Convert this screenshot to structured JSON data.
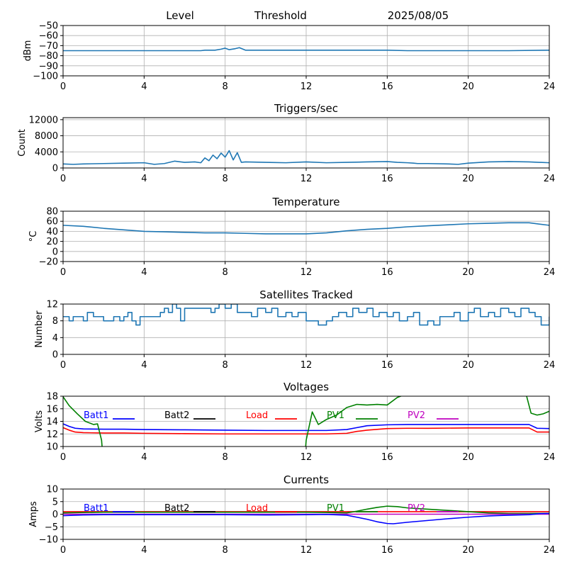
{
  "header": {
    "left": "Level",
    "middle": "Threshold",
    "date": "2025/08/05"
  },
  "chart_data": [
    {
      "id": "level",
      "type": "line",
      "title": "",
      "ylabel": "dBm",
      "xlim": [
        0,
        24
      ],
      "ylim": [
        -100,
        -50
      ],
      "xticks": [
        "0",
        "4",
        "8",
        "12",
        "16",
        "20",
        "24"
      ],
      "yticks": [
        "−100",
        "−90",
        "−80",
        "−70",
        "−60",
        "−50"
      ],
      "ytick_values": [
        -100,
        -90,
        -80,
        -70,
        -60,
        -50
      ],
      "grid": true,
      "series": [
        {
          "color": "#1f77b4",
          "x": [
            0,
            2,
            4,
            5,
            6,
            6.8,
            7,
            7.5,
            7.8,
            8,
            8.2,
            8.5,
            8.7,
            9,
            10,
            12,
            14,
            16,
            17,
            18,
            20,
            22,
            24
          ],
          "y": [
            -75,
            -75,
            -75,
            -75,
            -75,
            -75,
            -74.5,
            -74.5,
            -73.5,
            -72.5,
            -74,
            -73,
            -72,
            -74.5,
            -74.5,
            -74.5,
            -74.5,
            -74.5,
            -75,
            -75,
            -75,
            -75,
            -74.5
          ]
        }
      ]
    },
    {
      "id": "triggers",
      "type": "line",
      "title": "Triggers/sec",
      "ylabel": "Count",
      "xlim": [
        0,
        24
      ],
      "ylim": [
        0,
        12500
      ],
      "xticks": [
        "0",
        "4",
        "8",
        "12",
        "16",
        "20",
        "24"
      ],
      "yticks": [
        "0",
        "4000",
        "8000",
        "12000"
      ],
      "ytick_values": [
        0,
        4000,
        8000,
        12000
      ],
      "grid": true,
      "series": [
        {
          "color": "#1f77b4",
          "x": [
            0,
            0.5,
            1,
            2,
            3,
            4,
            4.5,
            5,
            5.5,
            6,
            6.5,
            6.8,
            7,
            7.2,
            7.4,
            7.6,
            7.8,
            8,
            8.2,
            8.4,
            8.6,
            8.8,
            9,
            10,
            11,
            12,
            13,
            14,
            15,
            16,
            16.5,
            17,
            17.3,
            17.5,
            18,
            19,
            19.5,
            20,
            21,
            22,
            23,
            24
          ],
          "y": [
            1000,
            900,
            1000,
            1100,
            1200,
            1300,
            900,
            1100,
            1700,
            1400,
            1500,
            1300,
            2500,
            1800,
            3200,
            2300,
            3700,
            2700,
            4300,
            2000,
            3800,
            1400,
            1500,
            1400,
            1300,
            1500,
            1300,
            1400,
            1500,
            1600,
            1400,
            1300,
            1200,
            1100,
            1100,
            1000,
            900,
            1200,
            1500,
            1600,
            1500,
            1300
          ]
        }
      ]
    },
    {
      "id": "temperature",
      "type": "line",
      "title": "Temperature",
      "ylabel": "°C",
      "xlim": [
        0,
        24
      ],
      "ylim": [
        -20,
        80
      ],
      "xticks": [
        "0",
        "4",
        "8",
        "12",
        "16",
        "20",
        "24"
      ],
      "yticks": [
        "−20",
        "0",
        "20",
        "40",
        "60",
        "80"
      ],
      "ytick_values": [
        -20,
        0,
        20,
        40,
        60,
        80
      ],
      "grid": true,
      "series": [
        {
          "color": "#1f77b4",
          "x": [
            0,
            1,
            2,
            3,
            4,
            5,
            6,
            7,
            8,
            9,
            10,
            11,
            12,
            13,
            14,
            15,
            16,
            17,
            18,
            19,
            20,
            21,
            22,
            23,
            24
          ],
          "y": [
            52,
            50,
            46,
            43,
            40,
            39,
            38,
            37,
            37,
            36,
            35,
            35,
            35,
            37,
            41,
            44,
            46,
            49,
            51,
            53,
            55,
            56,
            57,
            57,
            52
          ]
        }
      ]
    },
    {
      "id": "satellites",
      "type": "line",
      "title": "Satellites Tracked",
      "ylabel": "Number",
      "xlim": [
        0,
        24
      ],
      "ylim": [
        0,
        12
      ],
      "xticks": [
        "0",
        "4",
        "8",
        "12",
        "16",
        "20",
        "24"
      ],
      "yticks": [
        "0",
        "4",
        "8",
        "12"
      ],
      "ytick_values": [
        0,
        4,
        8,
        12
      ],
      "grid": true,
      "step": true,
      "series": [
        {
          "color": "#1f77b4",
          "x": [
            0,
            0.3,
            0.5,
            0.7,
            1,
            1.2,
            1.5,
            2,
            2.5,
            2.8,
            3,
            3.2,
            3.4,
            3.6,
            3.8,
            4,
            4.5,
            4.8,
            5,
            5.2,
            5.4,
            5.6,
            5.8,
            6,
            6.5,
            7,
            7.3,
            7.5,
            7.7,
            8,
            8.3,
            8.6,
            9,
            9.3,
            9.6,
            10,
            10.3,
            10.6,
            11,
            11.3,
            11.6,
            12,
            12.3,
            12.6,
            13,
            13.3,
            13.6,
            14,
            14.3,
            14.6,
            15,
            15.3,
            15.6,
            16,
            16.3,
            16.6,
            17,
            17.3,
            17.6,
            18,
            18.3,
            18.6,
            19,
            19.3,
            19.6,
            20,
            20.3,
            20.6,
            21,
            21.3,
            21.6,
            22,
            22.3,
            22.6,
            23,
            23.3,
            23.6,
            24
          ],
          "y": [
            9,
            8,
            9,
            9,
            8,
            10,
            9,
            8,
            9,
            8,
            9,
            10,
            8,
            7,
            9,
            9,
            9,
            10,
            11,
            10,
            12,
            11,
            8,
            11,
            11,
            11,
            10,
            11,
            12,
            11,
            12,
            10,
            10,
            9,
            11,
            10,
            11,
            9,
            10,
            9,
            10,
            8,
            8,
            7,
            8,
            9,
            10,
            9,
            11,
            10,
            11,
            9,
            10,
            9,
            10,
            8,
            9,
            10,
            7,
            8,
            7,
            9,
            9,
            10,
            8,
            10,
            11,
            9,
            10,
            9,
            11,
            10,
            9,
            11,
            10,
            9,
            7,
            9
          ]
        }
      ]
    },
    {
      "id": "voltages",
      "type": "line",
      "title": "Voltages",
      "ylabel": "Volts",
      "xlim": [
        0,
        24
      ],
      "ylim": [
        10,
        18
      ],
      "xticks": [
        "0",
        "4",
        "8",
        "12",
        "16",
        "20",
        "24"
      ],
      "yticks": [
        "10",
        "12",
        "14",
        "16",
        "18"
      ],
      "ytick_values": [
        10,
        12,
        14,
        16,
        18
      ],
      "grid": true,
      "legend": [
        {
          "name": "Batt1",
          "color": "#0000ff"
        },
        {
          "name": "Batt2",
          "color": "#000000"
        },
        {
          "name": "Load",
          "color": "#ff0000"
        },
        {
          "name": "PV1",
          "color": "#008000"
        },
        {
          "name": "PV2",
          "color": "#bf00bf"
        }
      ],
      "series": [
        {
          "name": "Batt1",
          "color": "#0000ff",
          "x": [
            0,
            0.3,
            0.6,
            1,
            2,
            3,
            4,
            6,
            8,
            10,
            12,
            13,
            14,
            14.5,
            15,
            16,
            17,
            18,
            20,
            22,
            23,
            23.4,
            24
          ],
          "y": [
            13.6,
            13.2,
            12.9,
            12.8,
            12.75,
            12.75,
            12.7,
            12.65,
            12.6,
            12.55,
            12.55,
            12.55,
            12.7,
            13.0,
            13.3,
            13.45,
            13.5,
            13.5,
            13.5,
            13.5,
            13.5,
            12.9,
            12.85
          ]
        },
        {
          "name": "Load",
          "color": "#ff0000",
          "x": [
            0,
            0.3,
            0.6,
            1,
            2,
            3,
            4,
            6,
            8,
            10,
            12,
            13,
            14,
            14.5,
            15,
            16,
            17,
            18,
            20,
            22,
            23,
            23.4,
            24
          ],
          "y": [
            13.0,
            12.6,
            12.3,
            12.2,
            12.15,
            12.15,
            12.1,
            12.05,
            12.0,
            12.0,
            12.0,
            12.0,
            12.1,
            12.4,
            12.6,
            12.85,
            12.9,
            12.9,
            12.95,
            12.95,
            12.95,
            12.3,
            12.3
          ]
        },
        {
          "name": "PV1",
          "color": "#008000",
          "x": [
            0,
            0.3,
            0.7,
            1.1,
            1.5,
            1.7,
            1.9,
            1.95
          ],
          "y": [
            17.9,
            16.5,
            15.2,
            14.0,
            13.5,
            13.6,
            11.0,
            9.0
          ]
        },
        {
          "name": "PV1",
          "color": "#008000",
          "x": [
            11.95,
            12.0,
            12.3,
            12.6,
            13.0,
            13.5,
            14.0,
            14.5,
            15.0,
            15.5,
            16.0,
            16.5,
            17.0,
            17.4
          ],
          "y": [
            9.0,
            11.0,
            15.5,
            13.5,
            14.3,
            15.0,
            16.2,
            16.7,
            16.6,
            16.7,
            16.6,
            17.8,
            18.4,
            19.0
          ]
        },
        {
          "name": "PV1",
          "color": "#008000",
          "x": [
            22.8,
            23.1,
            23.4,
            23.7,
            24.0
          ],
          "y": [
            19.0,
            15.3,
            15.0,
            15.2,
            15.6
          ]
        }
      ]
    },
    {
      "id": "currents",
      "type": "line",
      "title": "Currents",
      "ylabel": "Amps",
      "xlim": [
        0,
        24
      ],
      "ylim": [
        -10,
        10
      ],
      "xticks": [
        "0",
        "4",
        "8",
        "12",
        "16",
        "20",
        "24"
      ],
      "yticks": [
        "−10",
        "−5",
        "0",
        "5",
        "10"
      ],
      "ytick_values": [
        -10,
        -5,
        0,
        5,
        10
      ],
      "grid": true,
      "legend": [
        {
          "name": "Batt1",
          "color": "#0000ff"
        },
        {
          "name": "Batt2",
          "color": "#000000"
        },
        {
          "name": "Load",
          "color": "#ff0000"
        },
        {
          "name": "PV1",
          "color": "#008000"
        },
        {
          "name": "PV2",
          "color": "#bf00bf"
        }
      ],
      "series": [
        {
          "name": "Load",
          "color": "#ff0000",
          "x": [
            0,
            2,
            4,
            6,
            8,
            10,
            12,
            14,
            16,
            18,
            20,
            22,
            24
          ],
          "y": [
            1.0,
            1.0,
            1.0,
            1.0,
            1.0,
            1.0,
            1.0,
            1.0,
            1.0,
            1.0,
            1.0,
            1.0,
            1.0
          ]
        },
        {
          "name": "PV1",
          "color": "#008000",
          "x": [
            0,
            2,
            4,
            6,
            8,
            10,
            12,
            13,
            14,
            14.5,
            15,
            15.5,
            16,
            16.5,
            17,
            18,
            19,
            20,
            21,
            22,
            23,
            24
          ],
          "y": [
            0.5,
            0.8,
            0.8,
            0.8,
            0.8,
            0.8,
            0.8,
            0.7,
            0.5,
            1.2,
            2.0,
            2.7,
            3.2,
            3.0,
            2.5,
            2.0,
            1.5,
            1.0,
            0.5,
            0.3,
            0.3,
            0.3
          ]
        },
        {
          "name": "PV2",
          "color": "#bf00bf",
          "x": [
            0,
            4,
            8,
            12,
            14,
            16,
            20,
            24
          ],
          "y": [
            0.0,
            0.0,
            0.0,
            0.0,
            0.0,
            0.0,
            0.0,
            0.0
          ]
        },
        {
          "name": "Batt1",
          "color": "#0000ff",
          "x": [
            0,
            1,
            2,
            4,
            6,
            8,
            10,
            12,
            13,
            14,
            14.5,
            15,
            15.5,
            16,
            16.3,
            17,
            18,
            19,
            20,
            21,
            22,
            23,
            23.5,
            24
          ],
          "y": [
            -0.6,
            -0.3,
            -0.2,
            -0.2,
            -0.2,
            -0.2,
            -0.3,
            -0.2,
            -0.1,
            -0.4,
            -1.2,
            -2.0,
            -3.0,
            -3.7,
            -3.8,
            -3.2,
            -2.5,
            -1.8,
            -1.2,
            -0.7,
            -0.4,
            -0.2,
            0.2,
            0.3
          ]
        }
      ]
    }
  ]
}
